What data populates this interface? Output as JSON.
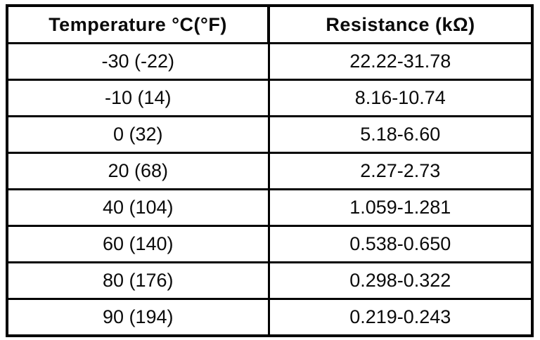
{
  "page": {
    "background_color": "#ffffff",
    "line_color": "#000000",
    "text_color": "#0a0a0a"
  },
  "table": {
    "columns": [
      {
        "key": "temperature",
        "label": "Temperature °C(°F)"
      },
      {
        "key": "resistance",
        "label": "Resistance (kΩ)"
      }
    ],
    "rows": [
      {
        "temperature": "-30 (-22)",
        "resistance": "22.22-31.78"
      },
      {
        "temperature": "-10 (14)",
        "resistance": "8.16-10.74"
      },
      {
        "temperature": "0 (32)",
        "resistance": "5.18-6.60"
      },
      {
        "temperature": "20 (68)",
        "resistance": "2.27-2.73"
      },
      {
        "temperature": "40 (104)",
        "resistance": "1.059-1.281"
      },
      {
        "temperature": "60 (140)",
        "resistance": "0.538-0.650"
      },
      {
        "temperature": "80 (176)",
        "resistance": "0.298-0.322"
      },
      {
        "temperature": "90 (194)",
        "resistance": "0.219-0.243"
      }
    ]
  }
}
